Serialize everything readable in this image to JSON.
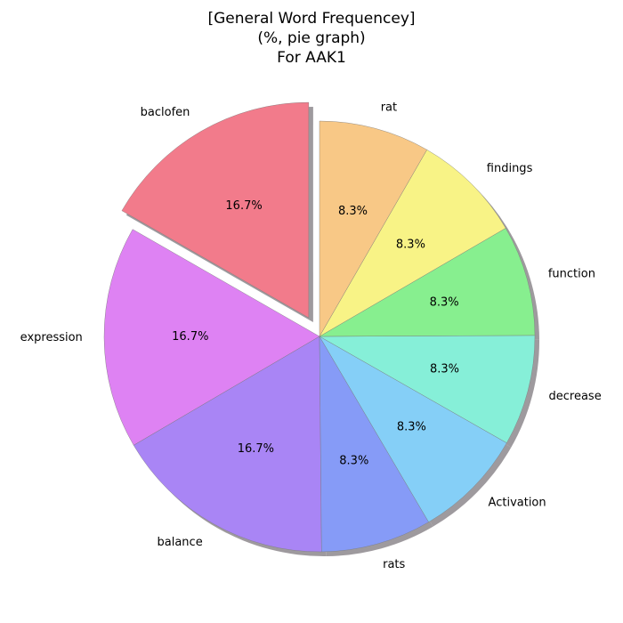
{
  "chart_data": {
    "type": "pie",
    "title_lines": [
      "[General Word Frequencey]",
      "(%, pie graph)",
      "For AAK1"
    ],
    "slices": [
      {
        "label": "baclofen",
        "value": 16.7,
        "pct_label": "16.7%",
        "color": "#f27b8b",
        "exploded": true
      },
      {
        "label": "expression",
        "value": 16.7,
        "pct_label": "16.7%",
        "color": "#de82f3",
        "exploded": false
      },
      {
        "label": "balance",
        "value": 16.7,
        "pct_label": "16.7%",
        "color": "#a985f5",
        "exploded": false
      },
      {
        "label": "rats",
        "value": 8.3,
        "pct_label": "8.3%",
        "color": "#869bf7",
        "exploded": false
      },
      {
        "label": "Activation",
        "value": 8.3,
        "pct_label": "8.3%",
        "color": "#85cff7",
        "exploded": false
      },
      {
        "label": "decrease",
        "value": 8.3,
        "pct_label": "8.3%",
        "color": "#86efd8",
        "exploded": false
      },
      {
        "label": "function",
        "value": 8.3,
        "pct_label": "8.3%",
        "color": "#87ef8f",
        "exploded": false
      },
      {
        "label": "findings",
        "value": 8.3,
        "pct_label": "8.3%",
        "color": "#f8f386",
        "exploded": false
      },
      {
        "label": "rat",
        "value": 8.3,
        "pct_label": "8.3%",
        "color": "#f8c886",
        "exploded": false
      }
    ],
    "start_angle_deg": 90,
    "direction": "counterclockwise",
    "shadow": true,
    "shadow_color": "#9e9a9e"
  }
}
